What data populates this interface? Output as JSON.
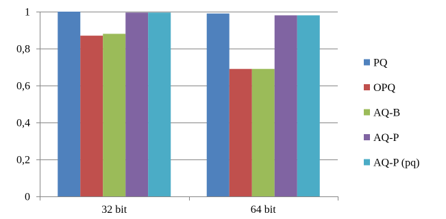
{
  "chart_data": {
    "type": "bar",
    "categories": [
      "32 bit",
      "64 bit"
    ],
    "series": [
      {
        "name": "PQ",
        "values": [
          1.0,
          0.99
        ],
        "color": "#4F81BD"
      },
      {
        "name": "OPQ",
        "values": [
          0.87,
          0.69
        ],
        "color": "#C0504D"
      },
      {
        "name": "AQ-B",
        "values": [
          0.88,
          0.69
        ],
        "color": "#9BBB59"
      },
      {
        "name": "AQ-P",
        "values": [
          0.995,
          0.98
        ],
        "color": "#8064A2"
      },
      {
        "name": "AQ-P (pq)",
        "values": [
          0.995,
          0.98
        ],
        "color": "#4BACC6"
      }
    ],
    "ylim": [
      0,
      1
    ],
    "yticks": [
      {
        "value": 0,
        "label": "0"
      },
      {
        "value": 0.2,
        "label": "0,2"
      },
      {
        "value": 0.4,
        "label": "0,4"
      },
      {
        "value": 0.6,
        "label": "0,6"
      },
      {
        "value": 0.8,
        "label": "0,8"
      },
      {
        "value": 1,
        "label": "1"
      }
    ],
    "title": "",
    "xlabel": "",
    "ylabel": "",
    "grid": true,
    "legend_position": "right"
  }
}
